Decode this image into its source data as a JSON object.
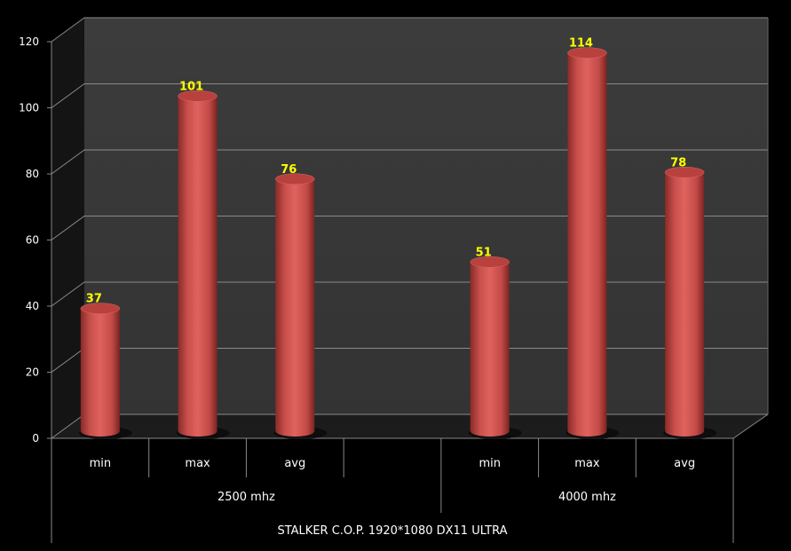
{
  "chart_data": {
    "type": "bar",
    "style": "3d-cylinder",
    "title": "",
    "xlabel": "STALKER C.O.P. 1920*1080 DX11 ULTRA",
    "ylabel": "",
    "ylim": [
      0,
      120
    ],
    "yticks": [
      "0",
      "20",
      "40",
      "60",
      "80",
      "100",
      "120"
    ],
    "grid": true,
    "groups": [
      {
        "name": "2500 mhz",
        "categories": [
          "min",
          "max",
          "avg",
          ""
        ],
        "values": [
          37,
          101,
          76,
          null
        ]
      },
      {
        "name": "4000 mhz",
        "categories": [
          "min",
          "max",
          "avg"
        ],
        "values": [
          51,
          114,
          78
        ]
      }
    ],
    "colors": {
      "bar": "#c9504d",
      "label": "#ffff00",
      "wall": "#3a3a3a",
      "floor": "#1e1e1e",
      "background": "#000000"
    }
  }
}
